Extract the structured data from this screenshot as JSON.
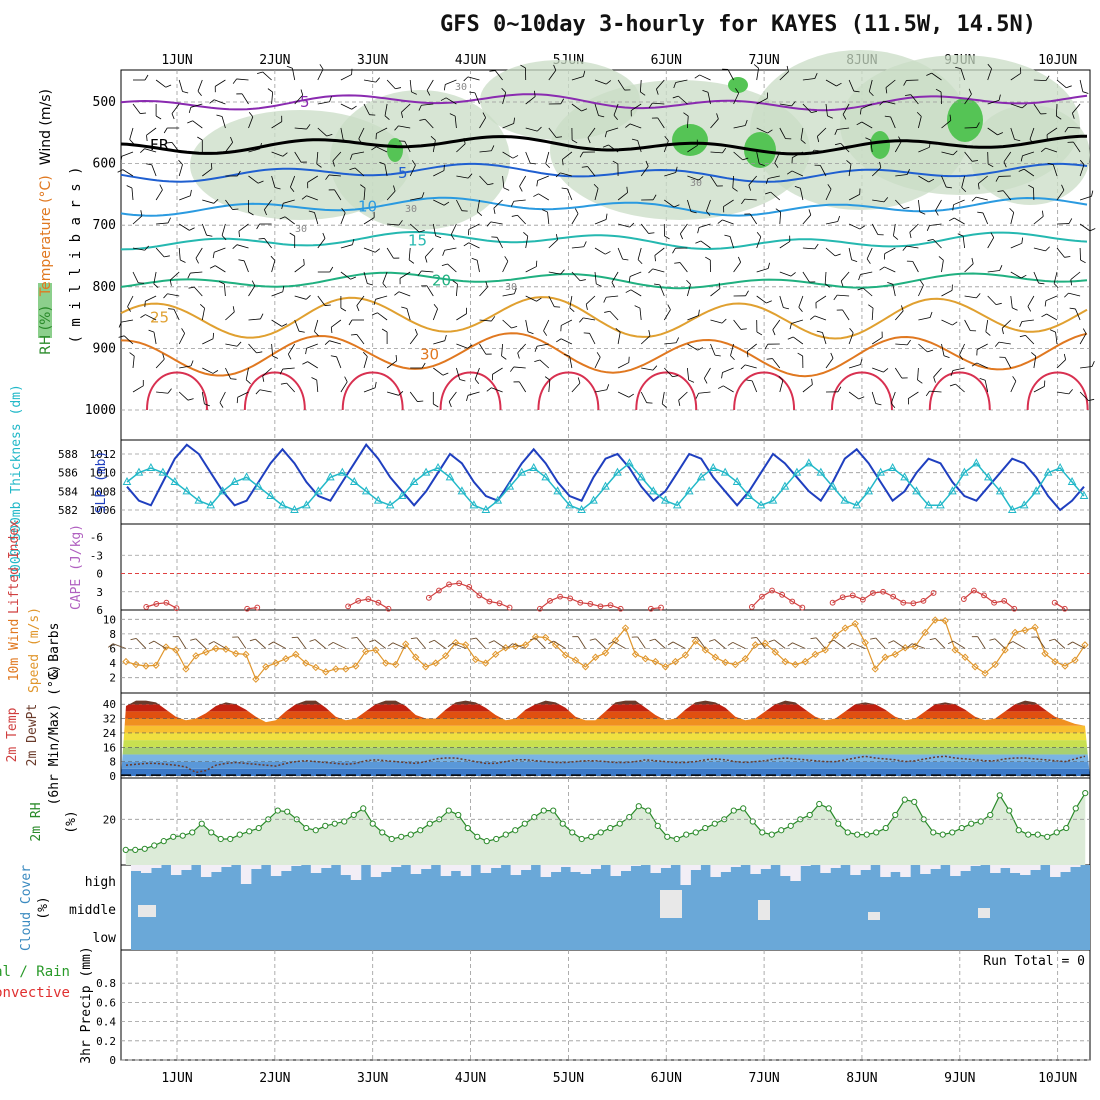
{
  "title": "GFS 0~10day 3-hourly for KAYES (11.5W, 14.5N)",
  "colors": {
    "wind_barb": "#000000",
    "rh": "#2a8a2a",
    "slp": "#1f3fbf",
    "thickness": "#22b8c8",
    "lifted_index": "#d04040",
    "wind_speed": "#e0962c",
    "wind10_barb": "#6b4a2a",
    "rh2m": "#2a8a2a",
    "cloud": "#6aa8d8",
    "grid": "#999999"
  },
  "chart_data": [
    {
      "type": "contour",
      "panel": "upper-air",
      "ylabel_parts": [
        "RH (%)",
        "Temperature (°C)",
        "Wind (m/s)"
      ],
      "yunit": "( m i l l i b a r s )",
      "x_ticks": [
        "1JUN",
        "2JUN",
        "3JUN",
        "4JUN",
        "5JUN",
        "6JUN",
        "7JUN",
        "8JUN",
        "9JUN",
        "10JUN"
      ],
      "y_ticks": [
        500,
        600,
        700,
        800,
        900,
        1000
      ],
      "ylim": [
        1050,
        450
      ],
      "temperature_isotherms": [
        {
          "label": "5",
          "level_mb": 500
        },
        {
          "label": "FR",
          "level_mb": 570
        },
        {
          "label": "5",
          "level_mb": 615
        },
        {
          "label": "10",
          "level_mb": 670
        },
        {
          "label": "15",
          "level_mb": 725
        },
        {
          "label": "20",
          "level_mb": 790
        },
        {
          "label": "25",
          "level_mb": 850
        },
        {
          "label": "30",
          "level_mb": 910
        }
      ],
      "rh_contour_labels": [
        "30",
        "30",
        "30",
        "30",
        "30"
      ]
    },
    {
      "type": "line",
      "panel": "slp-thickness",
      "ylabel": "SLP (mb)",
      "ylabel2": "1000~500mb Thickness (dm)",
      "y_ticks_slp": [
        1006,
        1008,
        1010,
        1012
      ],
      "y_ticks_thickness": [
        582,
        584,
        586,
        588
      ],
      "series": [
        {
          "name": "SLP",
          "values": [
            1008.5,
            1007,
            1006.5,
            1009,
            1011.5,
            1013,
            1012,
            1010,
            1008,
            1006.5,
            1007,
            1009,
            1011,
            1012.5,
            1011,
            1009,
            1007.5,
            1007,
            1009,
            1011,
            1013,
            1011.5,
            1009.5,
            1008,
            1006.5,
            1008,
            1010,
            1012,
            1011,
            1009,
            1007.5,
            1007,
            1009,
            1011,
            1012.5,
            1011,
            1009,
            1007.5,
            1007,
            1009.5,
            1011.5,
            1012,
            1010.5,
            1008.5,
            1007,
            1008,
            1010,
            1012,
            1011.5,
            1009.5,
            1008,
            1006.5,
            1008,
            1010,
            1012,
            1011,
            1009.5,
            1008,
            1007,
            1009,
            1011.5,
            1012.5,
            1011,
            1009,
            1007,
            1008,
            1010,
            1011.5,
            1011,
            1009,
            1007.5,
            1007,
            1008.5,
            1010,
            1011.5,
            1011,
            1009.5,
            1007.5,
            1006,
            1007,
            1008.5
          ]
        },
        {
          "name": "Thickness",
          "values": [
            585,
            586,
            586.5,
            586,
            585,
            584,
            583,
            582.5,
            584,
            585,
            585.5,
            584.5,
            583.5,
            582.5,
            582,
            582.5,
            584,
            585.5,
            586,
            585,
            584,
            583,
            582.5,
            583.5,
            585,
            586,
            586.5,
            585.5,
            584,
            582.5,
            582,
            583,
            584.5,
            586,
            586.5,
            585.5,
            584,
            582.5,
            582,
            583,
            584.5,
            586,
            587,
            585.5,
            584,
            583,
            582.5,
            584,
            585.5,
            586.5,
            586,
            585,
            583.5,
            582.5,
            583,
            584.5,
            586,
            587,
            586,
            584.5,
            583,
            582.5,
            584,
            586,
            586.5,
            585.5,
            584,
            582.5,
            582.5,
            584,
            586,
            587,
            585.5,
            584,
            582,
            582.5,
            584,
            586,
            586.5,
            585,
            583.5
          ]
        }
      ]
    },
    {
      "type": "line",
      "panel": "stability",
      "ylabel": "Lifted Index",
      "ylabel2": "CAPE (J/kg)",
      "y_ticks": [
        "-6",
        "-3",
        "0",
        "3",
        "6"
      ],
      "ylim": [
        -6,
        6
      ],
      "series": [
        {
          "name": "Lifted Index",
          "segments": [
            [
              [
                2,
                5.5
              ],
              [
                3,
                5
              ],
              [
                4,
                4.8
              ],
              [
                5,
                5.7
              ]
            ],
            [
              [
                12,
                5.8
              ],
              [
                13,
                5.6
              ]
            ],
            [
              [
                22,
                5.4
              ],
              [
                23,
                4.5
              ],
              [
                24,
                4.2
              ],
              [
                25,
                4.8
              ],
              [
                26,
                5.8
              ]
            ],
            [
              [
                30,
                4
              ],
              [
                31,
                2.8
              ],
              [
                32,
                1.8
              ],
              [
                33,
                1.6
              ],
              [
                34,
                2.2
              ],
              [
                35,
                3.6
              ],
              [
                36,
                4.6
              ],
              [
                37,
                4.9
              ],
              [
                38,
                5.6
              ]
            ],
            [
              [
                41,
                5.8
              ],
              [
                42,
                4.5
              ],
              [
                43,
                3.8
              ],
              [
                44,
                4.1
              ],
              [
                45,
                4.8
              ],
              [
                46,
                5
              ],
              [
                47,
                5.4
              ],
              [
                48,
                5.2
              ],
              [
                49,
                5.8
              ]
            ],
            [
              [
                52,
                5.8
              ],
              [
                53,
                5.6
              ]
            ],
            [
              [
                62,
                5.5
              ],
              [
                63,
                3.8
              ],
              [
                64,
                2.8
              ],
              [
                65,
                3.5
              ],
              [
                66,
                4.6
              ],
              [
                67,
                5.6
              ]
            ],
            [
              [
                70,
                4.8
              ],
              [
                71,
                3.9
              ],
              [
                72,
                3.6
              ],
              [
                73,
                4.3
              ],
              [
                74,
                3.2
              ],
              [
                75,
                3
              ],
              [
                76,
                3.8
              ],
              [
                77,
                4.8
              ],
              [
                78,
                4.9
              ],
              [
                79,
                4.5
              ],
              [
                80,
                3.2
              ]
            ],
            [
              [
                83,
                4.2
              ],
              [
                84,
                2.8
              ],
              [
                85,
                3.6
              ],
              [
                86,
                4.8
              ],
              [
                87,
                4.5
              ],
              [
                88,
                5.8
              ]
            ],
            [
              [
                92,
                4.8
              ],
              [
                93,
                5.8
              ]
            ]
          ]
        }
      ]
    },
    {
      "type": "line",
      "panel": "10m-wind",
      "ylabel": "10m Wind",
      "ylabel2": "Speed (m/s)",
      "ylabel3": "& Barbs",
      "y_ticks": [
        2,
        4,
        6,
        8,
        10
      ],
      "ylim": [
        1,
        11
      ],
      "series": [
        {
          "name": "Speed",
          "values": [
            4.2,
            3.8,
            3.6,
            3.7,
            6.2,
            5.8,
            3.2,
            5,
            5.5,
            6,
            5.9,
            5.3,
            5.2,
            1.8,
            3.5,
            4,
            4.6,
            5.2,
            4,
            3.4,
            2.8,
            3.2,
            3.2,
            3.6,
            5.6,
            5.8,
            4,
            3.8,
            6.6,
            4.8,
            3.5,
            4,
            5,
            6.8,
            6.5,
            4.5,
            4,
            5.2,
            6.1,
            6.3,
            6.5,
            7.6,
            7.5,
            6.5,
            5.1,
            4.4,
            3.5,
            4.8,
            5.4,
            7.1,
            8.8,
            5.2,
            4.6,
            4.2,
            3.5,
            4.2,
            5.1,
            7,
            5.8,
            4.8,
            4.1,
            3.8,
            4.6,
            6.5,
            6.7,
            5.5,
            4.2,
            3.8,
            4.2,
            5.2,
            5.8,
            7.8,
            8.8,
            9.4,
            6.8,
            3.2,
            4.8,
            5.2,
            6.1,
            6.3,
            8.2,
            9.9,
            9.8,
            5.8,
            4.8,
            3.5,
            2.6,
            3.8,
            5.8,
            8.2,
            8.5,
            8.9,
            5.3,
            4.2,
            3.6,
            4.4,
            6.5
          ]
        }
      ]
    },
    {
      "type": "area",
      "panel": "2m-temp",
      "ylabel": "2m Temp",
      "ylabel2": "2m DewPt",
      "ylabel3": "(6hr Min/Max) (°C)",
      "y_ticks": [
        0,
        8,
        16,
        24,
        32,
        40
      ],
      "ylim": [
        0,
        44
      ],
      "series": [
        {
          "name": "2m Temp",
          "values": [
            39,
            42,
            42,
            41,
            37,
            33,
            31,
            32,
            35,
            39,
            41,
            40,
            37,
            33,
            30,
            31,
            36,
            40,
            42,
            42,
            38,
            33,
            31,
            32,
            36,
            40,
            42,
            42,
            39,
            34,
            32,
            32,
            37,
            41,
            42,
            41,
            38,
            34,
            31,
            32,
            37,
            40,
            42,
            41,
            38,
            33,
            31,
            31,
            36,
            41,
            42,
            42,
            38,
            34,
            31,
            32,
            37,
            41,
            42,
            41,
            38,
            33,
            31,
            32,
            36,
            40,
            42,
            41,
            37,
            33,
            31,
            32,
            36,
            40,
            41,
            40,
            37,
            33,
            31,
            32,
            36,
            40,
            41,
            40,
            37,
            33,
            31,
            32,
            36,
            40,
            42,
            41,
            37,
            33,
            31,
            29,
            28
          ]
        },
        {
          "name": "2m DewPt",
          "values": [
            6,
            6.5,
            7,
            7,
            6.5,
            6,
            5,
            2,
            3,
            6,
            7,
            7.5,
            7,
            6.5,
            6,
            5.5,
            7,
            8,
            8.5,
            8,
            7.5,
            7,
            6.5,
            7,
            8.5,
            9,
            8.5,
            8,
            7.5,
            7,
            8,
            9.5,
            10,
            10,
            9,
            8,
            7,
            7,
            8,
            9,
            9,
            8.5,
            8,
            7.5,
            7.5,
            8,
            8.5,
            8.5,
            8,
            7.5,
            7.5,
            8,
            9,
            8.5,
            8,
            7.5,
            7.5,
            8,
            9,
            9.5,
            9,
            8,
            7.5,
            8,
            8.5,
            9.5,
            10,
            9.5,
            9,
            8.5,
            8,
            8,
            9,
            10,
            11,
            10,
            9.5,
            9,
            8,
            8.5,
            9.5,
            10.5,
            11,
            10,
            9.5,
            9,
            8.5,
            8.5,
            9.5,
            10,
            10,
            9.5,
            9,
            8.5,
            8,
            9.5,
            11
          ]
        }
      ]
    },
    {
      "type": "line",
      "panel": "2m-rh",
      "ylabel": "2m RH",
      "yunit": "(%)",
      "y_ticks": [
        20
      ],
      "ylim": [
        0,
        38
      ],
      "series": [
        {
          "name": "2m RH",
          "values": [
            6,
            6,
            6.5,
            8,
            10,
            12,
            12.5,
            14,
            18,
            14,
            11,
            11,
            13,
            14.5,
            16,
            20,
            24,
            23.5,
            20,
            16,
            15,
            17,
            18,
            19,
            22,
            25,
            18,
            14,
            11,
            12,
            13,
            15,
            18,
            20,
            24,
            22,
            16,
            12,
            10,
            11,
            13,
            15,
            18,
            21,
            24,
            24,
            18,
            14,
            11,
            12,
            14,
            16,
            18,
            21,
            26,
            24,
            17,
            12,
            11,
            13,
            14,
            16,
            18,
            20,
            24,
            25,
            19,
            14,
            13,
            15,
            17,
            20,
            22,
            27,
            25,
            18,
            14,
            13,
            13,
            14,
            16,
            22,
            29,
            28,
            20,
            14,
            13,
            14,
            16,
            18,
            19,
            22,
            31,
            24,
            15,
            13,
            13,
            12,
            14,
            16,
            25,
            32
          ]
        }
      ]
    },
    {
      "type": "bar",
      "panel": "cloud-cover",
      "ylabel": "Cloud Cover",
      "yunit": "(%)",
      "layers": [
        "high",
        "middle",
        "low"
      ]
    },
    {
      "type": "bar",
      "panel": "precip",
      "ylabel": "3hr Precip (mm)",
      "legend": [
        "Total / Rain",
        "Convective"
      ],
      "y_ticks": [
        "0",
        "0.2",
        "0.4",
        "0.6",
        "0.8"
      ],
      "ylim": [
        0,
        1
      ],
      "run_total": "Run Total = 0",
      "values": []
    }
  ]
}
